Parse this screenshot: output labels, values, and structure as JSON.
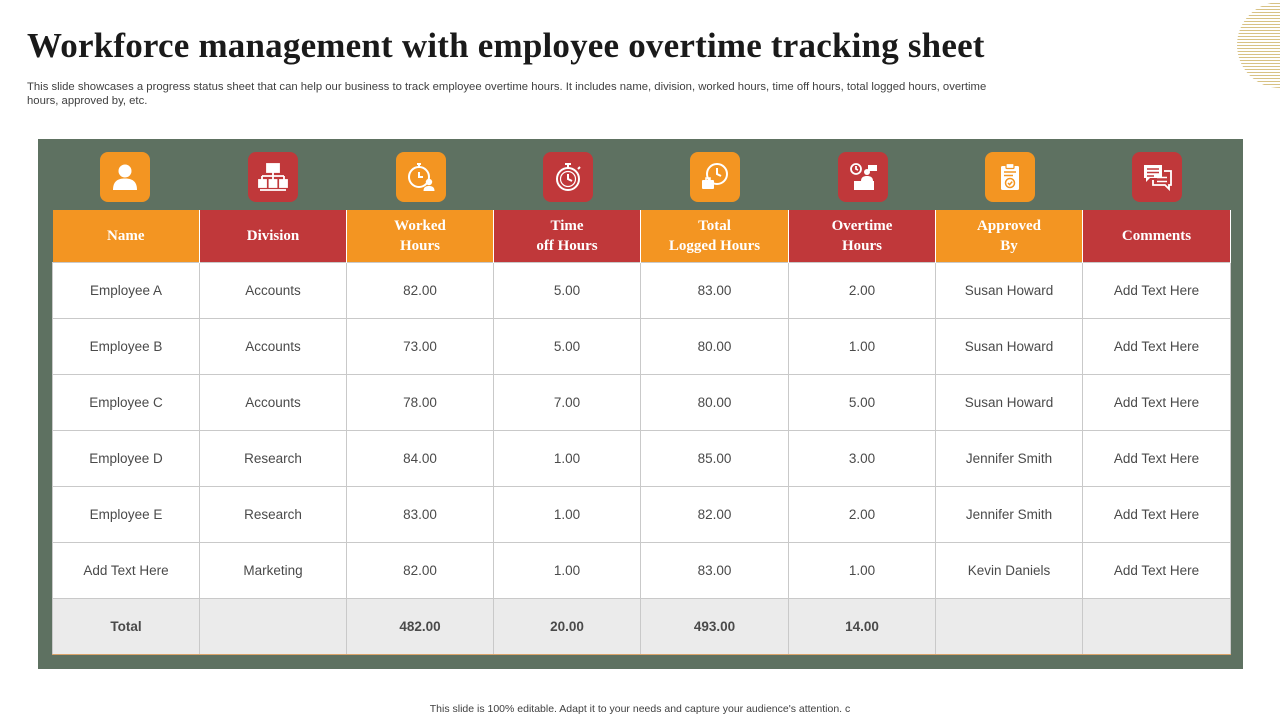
{
  "title": "Workforce management with employee overtime tracking sheet",
  "subtitle": "This slide showcases a progress status sheet that can help our business to track employee overtime hours. It includes name, division, worked hours, time off hours, total logged hours, overtime hours, approved by,  etc.",
  "colors": {
    "orange": "#f39522",
    "red": "#c0383a",
    "panel": "#5e7161"
  },
  "icons": [
    "user-icon",
    "organization-icon",
    "stopwatch-user-icon",
    "stopwatch-icon",
    "clock-briefcase-icon",
    "presenter-icon",
    "clipboard-check-icon",
    "chat-bubbles-icon"
  ],
  "table": {
    "headers": [
      {
        "line1": "Name",
        "line2": ""
      },
      {
        "line1": "Division",
        "line2": ""
      },
      {
        "line1": "Worked",
        "line2": "Hours"
      },
      {
        "line1": "Time",
        "line2": "off Hours"
      },
      {
        "line1": "Total",
        "line2": "Logged Hours"
      },
      {
        "line1": "Overtime",
        "line2": "Hours"
      },
      {
        "line1": "Approved",
        "line2": "By"
      },
      {
        "line1": "Comments",
        "line2": ""
      }
    ],
    "rows": [
      [
        "Employee A",
        "Accounts",
        "82.00",
        "5.00",
        "83.00",
        "2.00",
        "Susan Howard",
        "Add Text Here"
      ],
      [
        "Employee B",
        "Accounts",
        "73.00",
        "5.00",
        "80.00",
        "1.00",
        "Susan Howard",
        "Add Text Here"
      ],
      [
        "Employee C",
        "Accounts",
        "78.00",
        "7.00",
        "80.00",
        "5.00",
        "Susan Howard",
        "Add Text Here"
      ],
      [
        "Employee D",
        "Research",
        "84.00",
        "1.00",
        "85.00",
        "3.00",
        "Jennifer  Smith",
        "Add Text Here"
      ],
      [
        "Employee E",
        "Research",
        "83.00",
        "1.00",
        "82.00",
        "2.00",
        "Jennifer  Smith",
        "Add Text Here"
      ],
      [
        "Add Text Here",
        "Marketing",
        "82.00",
        "1.00",
        "83.00",
        "1.00",
        "Kevin  Daniels",
        "Add Text Here"
      ]
    ],
    "total": [
      "Total",
      "",
      "482.00",
      "20.00",
      "493.00",
      "14.00",
      "",
      ""
    ]
  },
  "footer": "This slide is 100% editable.  Adapt it to your needs and capture your audience's attention. c"
}
